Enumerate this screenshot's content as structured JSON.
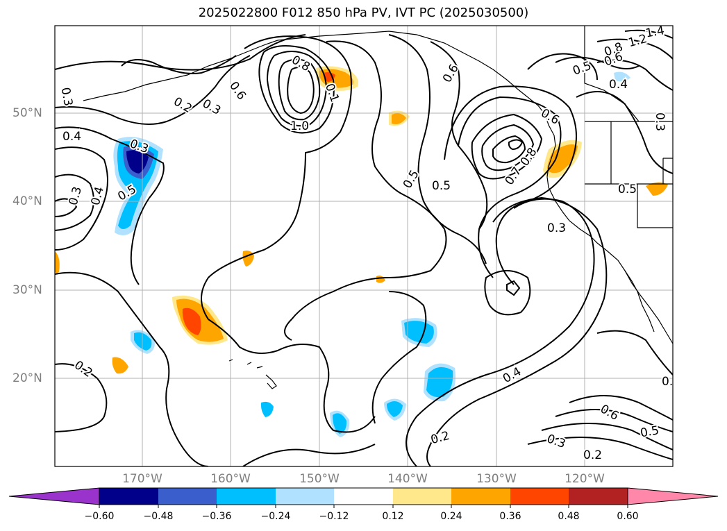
{
  "title": "2025022800 F012 850 hPa PV, IVT PC (2025030500)",
  "map": {
    "lat_labels": [
      "50°N",
      "40°N",
      "30°N",
      "20°N"
    ],
    "lon_labels": [
      "170°W",
      "160°W",
      "150°W",
      "140°W",
      "130°W",
      "120°W"
    ],
    "contour_labels": [
      "0.3",
      "0.2",
      "0.3",
      "0.6",
      "0.8",
      "1.0",
      "0.1",
      "0.4",
      "0.3",
      "0.5",
      "0.3",
      "0.4",
      "0.2",
      "0.5",
      "0.6",
      "0.7",
      "0.8",
      "0.6",
      "1.4",
      "1.2",
      "0.8",
      "0.6",
      "0.5",
      "0.4",
      "0.3",
      "0.5",
      "0.3",
      "0.5",
      "0.4",
      "0.2",
      "0.6",
      "0.5",
      "0.3",
      "0.2",
      "0."
    ]
  },
  "colorbar": {
    "colors": [
      "#9933cc",
      "#00008b",
      "#3a5fcd",
      "#00bfff",
      "#b0e2ff",
      "#ffffff",
      "#ffe88c",
      "#ffa500",
      "#ff4500",
      "#b22222",
      "#ff88aa"
    ],
    "tick_labels": [
      "−0.60",
      "−0.48",
      "−0.36",
      "−0.24",
      "−0.12",
      "0.12",
      "0.24",
      "0.36",
      "0.48",
      "0.60"
    ]
  }
}
